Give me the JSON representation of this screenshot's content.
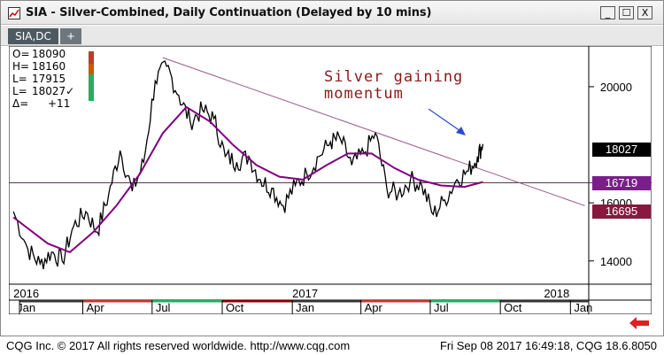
{
  "window": {
    "title": "SIA - Silver-Combined, Daily Continuation (Delayed by 10 mins)",
    "buttons": {
      "minimize": "_",
      "maximize": "☐",
      "close": "X"
    }
  },
  "tabs": [
    {
      "label": "SIA,DC"
    }
  ],
  "add_tab_label": "+",
  "ohlc": {
    "open_label": "O=",
    "open": "18090",
    "high_label": "H=",
    "high": "18160",
    "low_label": "L=",
    "low": "17915",
    "last_label": "L=",
    "last": "18027✓",
    "change_label": "Δ=",
    "change": "+11"
  },
  "annotation": {
    "line1": "Silver gaining",
    "line2": "momentum"
  },
  "price_tags": {
    "last": "18027",
    "ma": "16719",
    "support": "16695"
  },
  "colors": {
    "price_line": "#000000",
    "ma_line": "#800080",
    "trendline": "#9a5a8a",
    "support_line": "#4a2a4a",
    "annotation_text": "#8b1a1a",
    "arrow": "#2a4bd1",
    "tag_last": "#000000",
    "tag_ma": "#7a1f8a",
    "tag_support": "#86193d"
  },
  "chart_data": {
    "type": "line",
    "title": "",
    "xlabel": "",
    "ylabel": "",
    "ylim": [
      13200,
      21400
    ],
    "y_ticks": [
      14000,
      16000,
      20000
    ],
    "years": [
      "2016",
      "2017",
      "2018"
    ],
    "months": [
      "Jan",
      "Apr",
      "Jul",
      "Oct",
      "Jan",
      "Apr",
      "Jul",
      "Oct",
      "Jan"
    ],
    "series": [
      {
        "kind": "price",
        "points": [
          [
            "2016-01-01",
            15700
          ],
          [
            "2016-01-20",
            14400
          ],
          [
            "2016-02-05",
            13900
          ],
          [
            "2016-02-20",
            14300
          ],
          [
            "2016-03-05",
            14000
          ],
          [
            "2016-03-20",
            15200
          ],
          [
            "2016-04-05",
            15700
          ],
          [
            "2016-04-20",
            15000
          ],
          [
            "2016-05-05",
            16300
          ],
          [
            "2016-05-20",
            17800
          ],
          [
            "2016-06-05",
            16400
          ],
          [
            "2016-06-20",
            17400
          ],
          [
            "2016-07-05",
            20200
          ],
          [
            "2016-07-20",
            20700
          ],
          [
            "2016-08-05",
            19700
          ],
          [
            "2016-08-20",
            18800
          ],
          [
            "2016-09-05",
            19200
          ],
          [
            "2016-09-20",
            18900
          ],
          [
            "2016-10-05",
            17600
          ],
          [
            "2016-10-20",
            17400
          ],
          [
            "2016-11-05",
            17600
          ],
          [
            "2016-11-20",
            16800
          ],
          [
            "2016-12-05",
            16500
          ],
          [
            "2016-12-20",
            15900
          ],
          [
            "2017-01-05",
            16600
          ],
          [
            "2017-01-20",
            17000
          ],
          [
            "2017-02-05",
            17600
          ],
          [
            "2017-02-20",
            18100
          ],
          [
            "2017-03-05",
            18200
          ],
          [
            "2017-03-20",
            17300
          ],
          [
            "2017-04-05",
            17700
          ],
          [
            "2017-04-20",
            18400
          ],
          [
            "2017-05-05",
            16500
          ],
          [
            "2017-05-20",
            16300
          ],
          [
            "2017-06-05",
            16800
          ],
          [
            "2017-06-20",
            16600
          ],
          [
            "2017-07-05",
            15600
          ],
          [
            "2017-07-20",
            16100
          ],
          [
            "2017-08-05",
            16800
          ],
          [
            "2017-08-20",
            17100
          ],
          [
            "2017-09-01",
            17600
          ],
          [
            "2017-09-08",
            18027
          ]
        ]
      },
      {
        "kind": "moving-average",
        "points": [
          [
            "2016-01-01",
            15500
          ],
          [
            "2016-02-15",
            14600
          ],
          [
            "2016-03-15",
            14300
          ],
          [
            "2016-04-15",
            15000
          ],
          [
            "2016-05-15",
            15900
          ],
          [
            "2016-06-15",
            17000
          ],
          [
            "2016-07-15",
            18400
          ],
          [
            "2016-08-15",
            19300
          ],
          [
            "2016-09-15",
            18800
          ],
          [
            "2016-10-15",
            18000
          ],
          [
            "2016-11-15",
            17300
          ],
          [
            "2016-12-15",
            16900
          ],
          [
            "2017-01-15",
            16800
          ],
          [
            "2017-02-15",
            17300
          ],
          [
            "2017-03-15",
            17700
          ],
          [
            "2017-04-15",
            17700
          ],
          [
            "2017-05-15",
            17200
          ],
          [
            "2017-06-15",
            16800
          ],
          [
            "2017-07-15",
            16600
          ],
          [
            "2017-08-15",
            16550
          ],
          [
            "2017-09-08",
            16719
          ]
        ]
      }
    ],
    "trendline": [
      [
        "2016-07-15",
        21000
      ],
      [
        "2018-01-20",
        15900
      ]
    ],
    "support_level": 16695
  },
  "footer": {
    "left": "CQG Inc. © 2017 All rights reserved worldwide. http://www.cqg.com",
    "right": "Fri Sep 08 2017 16:49:18, CQG 18.6.8050"
  }
}
